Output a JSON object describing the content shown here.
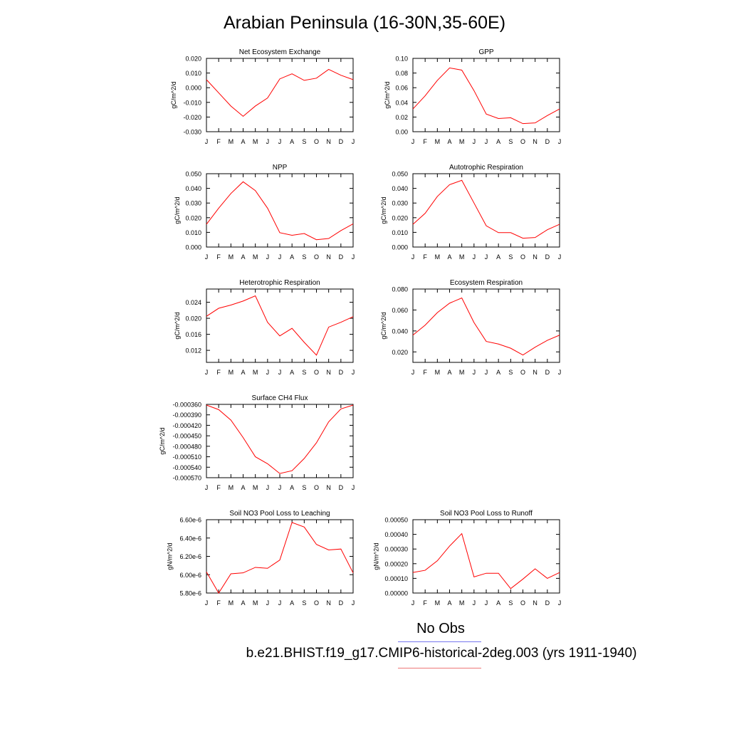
{
  "title": "Arabian Peninsula (16-30N,35-60E)",
  "months": [
    "J",
    "F",
    "M",
    "A",
    "M",
    "J",
    "J",
    "A",
    "S",
    "O",
    "N",
    "D",
    "J"
  ],
  "legend": {
    "obs_label": "No Obs",
    "obs_color": "#7777ee",
    "case_label": "b.e21.BHIST.f19_g17.CMIP6-historical-2deg.003 (yrs 1911-1940)",
    "case_color": "#ee7777"
  },
  "line_color": "#ff0000",
  "chart_data": [
    {
      "type": "line",
      "title": "Net Ecosystem Exchange",
      "ylabel": "gC/m^2/d",
      "ylim": [
        -0.03,
        0.02
      ],
      "yticks": [
        -0.03,
        -0.02,
        -0.01,
        0.0,
        0.01,
        0.02
      ],
      "ytick_labels": [
        "-0.030",
        "-0.020",
        "-0.010",
        "0.000",
        "0.010",
        "0.020"
      ],
      "series": [
        {
          "values": [
            0.0055,
            -0.0035,
            -0.0125,
            -0.0195,
            -0.0125,
            -0.007,
            0.006,
            0.0095,
            0.005,
            0.0065,
            0.0125,
            0.0085,
            0.0055
          ]
        }
      ]
    },
    {
      "type": "line",
      "title": "GPP",
      "ylabel": "gC/m^2/d",
      "ylim": [
        0.0,
        0.1
      ],
      "yticks": [
        0.0,
        0.02,
        0.04,
        0.06,
        0.08,
        0.1
      ],
      "ytick_labels": [
        "0.00",
        "0.02",
        "0.04",
        "0.06",
        "0.08",
        "0.10"
      ],
      "series": [
        {
          "values": [
            0.031,
            0.049,
            0.07,
            0.087,
            0.084,
            0.056,
            0.024,
            0.018,
            0.019,
            0.011,
            0.012,
            0.022,
            0.031
          ]
        }
      ]
    },
    {
      "type": "line",
      "title": "NPP",
      "ylabel": "gC/m^2/d",
      "ylim": [
        0.0,
        0.05
      ],
      "yticks": [
        0.0,
        0.01,
        0.02,
        0.03,
        0.04,
        0.05
      ],
      "ytick_labels": [
        "0.000",
        "0.010",
        "0.020",
        "0.030",
        "0.040",
        "0.050"
      ],
      "series": [
        {
          "values": [
            0.0155,
            0.0265,
            0.0365,
            0.0445,
            0.0385,
            0.0265,
            0.0098,
            0.008,
            0.0092,
            0.005,
            0.0058,
            0.0112,
            0.0158
          ]
        }
      ]
    },
    {
      "type": "line",
      "title": "Autotrophic Respiration",
      "ylabel": "gC/m^2/d",
      "ylim": [
        0.0,
        0.05
      ],
      "yticks": [
        0.0,
        0.01,
        0.02,
        0.03,
        0.04,
        0.05
      ],
      "ytick_labels": [
        "0.000",
        "0.010",
        "0.020",
        "0.030",
        "0.040",
        "0.050"
      ],
      "series": [
        {
          "values": [
            0.0155,
            0.023,
            0.0345,
            0.0425,
            0.0455,
            0.03,
            0.0145,
            0.0098,
            0.0098,
            0.006,
            0.0065,
            0.0118,
            0.0155
          ]
        }
      ]
    },
    {
      "type": "line",
      "title": "Heterotrophic Respiration",
      "ylabel": "gC/m^2/d",
      "ylim": [
        0.009,
        0.0273
      ],
      "yticks": [
        0.012,
        0.016,
        0.02,
        0.024
      ],
      "ytick_labels": [
        "0.012",
        "0.016",
        "0.020",
        "0.024"
      ],
      "series": [
        {
          "values": [
            0.0205,
            0.0225,
            0.0233,
            0.0243,
            0.0256,
            0.019,
            0.0156,
            0.0175,
            0.014,
            0.0108,
            0.0178,
            0.019,
            0.0204
          ]
        }
      ]
    },
    {
      "type": "line",
      "title": "Ecosystem Respiration",
      "ylabel": "gC/m^2/d",
      "ylim": [
        0.01,
        0.08
      ],
      "yticks": [
        0.02,
        0.04,
        0.06,
        0.08
      ],
      "ytick_labels": [
        "0.020",
        "0.040",
        "0.060",
        "0.080"
      ],
      "series": [
        {
          "values": [
            0.036,
            0.0455,
            0.0575,
            0.0665,
            0.0715,
            0.048,
            0.03,
            0.0275,
            0.0235,
            0.017,
            0.0245,
            0.031,
            0.036
          ]
        }
      ]
    },
    {
      "type": "line",
      "title": "Surface CH4 Flux",
      "ylabel": "gC/m^2/d",
      "ylim": [
        -0.00057,
        -0.00036
      ],
      "yticks": [
        -0.00057,
        -0.00054,
        -0.00051,
        -0.00048,
        -0.00045,
        -0.00042,
        -0.00039,
        -0.00036
      ],
      "ytick_labels": [
        "-0.000570",
        "-0.000540",
        "-0.000510",
        "-0.000480",
        "-0.000450",
        "-0.000420",
        "-0.000390",
        "-0.000360"
      ],
      "series": [
        {
          "values": [
            -0.000362,
            -0.000375,
            -0.000405,
            -0.000455,
            -0.00051,
            -0.00053,
            -0.000558,
            -0.00055,
            -0.000515,
            -0.00047,
            -0.00041,
            -0.000373,
            -0.000362
          ]
        }
      ]
    },
    {
      "type": "line",
      "title": "Soil NO3 Pool Loss to Leaching",
      "ylabel": "gN/m^2/d",
      "ylim": [
        5.8e-06,
        6.6e-06
      ],
      "yticks": [
        5.8e-06,
        6e-06,
        6.2e-06,
        6.4e-06,
        6.6e-06
      ],
      "ytick_labels": [
        "5.80e-6",
        "6.00e-6",
        "6.20e-6",
        "6.40e-6",
        "6.60e-6"
      ],
      "series": [
        {
          "values": [
            6.03e-06,
            5.8e-06,
            6.01e-06,
            6.02e-06,
            6.08e-06,
            6.07e-06,
            6.16e-06,
            6.57e-06,
            6.52e-06,
            6.33e-06,
            6.27e-06,
            6.28e-06,
            6.02e-06
          ]
        }
      ]
    },
    {
      "type": "line",
      "title": "Soil NO3 Pool Loss to Runoff",
      "ylabel": "gN/m^2/d",
      "ylim": [
        0.0,
        0.0005
      ],
      "yticks": [
        0.0,
        0.0001,
        0.0002,
        0.0003,
        0.0004,
        0.0005
      ],
      "ytick_labels": [
        "0.00000",
        "0.00010",
        "0.00020",
        "0.00030",
        "0.00040",
        "0.00050"
      ],
      "series": [
        {
          "values": [
            0.00014,
            0.000155,
            0.00022,
            0.00032,
            0.000405,
            0.00011,
            0.000135,
            0.000135,
            3e-05,
            9.5e-05,
            0.000165,
            0.0001,
            0.00014
          ]
        }
      ]
    }
  ]
}
